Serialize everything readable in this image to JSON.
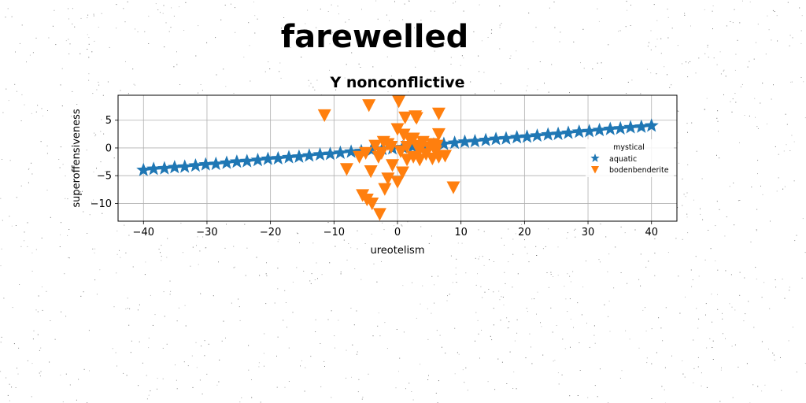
{
  "figure": {
    "suptitle": "farewelled"
  },
  "chart_data": {
    "type": "scatter",
    "title": "Y nonconflictive",
    "xlabel": "ureotelism",
    "ylabel": "superoffensiveness",
    "xlim": [
      -44,
      44
    ],
    "ylim": [
      -13.2,
      9.5
    ],
    "xticks": [
      -40,
      -30,
      -20,
      -10,
      0,
      10,
      20,
      30,
      40
    ],
    "xtick_labels": [
      "−40",
      "−30",
      "−20",
      "−10",
      "0",
      "10",
      "20",
      "30",
      "40"
    ],
    "yticks": [
      -10,
      -5,
      0,
      5
    ],
    "ytick_labels": [
      "−10",
      "−5",
      "0",
      "5"
    ],
    "grid": true,
    "legend": {
      "title": "mystical",
      "placement": "right"
    },
    "series": [
      {
        "name": "aquatic",
        "marker": "star",
        "color": "#1f77b4",
        "line": true,
        "x": [
          -40,
          -38.4,
          -36.7,
          -35.1,
          -33.5,
          -31.8,
          -30.2,
          -28.6,
          -26.9,
          -25.3,
          -23.7,
          -22,
          -20.4,
          -18.8,
          -17.1,
          -15.5,
          -13.9,
          -12.2,
          -10.6,
          -9,
          -7.3,
          -5.7,
          -4.1,
          -2.4,
          -0.8,
          0.8,
          2.4,
          4.1,
          5.7,
          7.3,
          9,
          10.6,
          12.2,
          13.9,
          15.5,
          17.1,
          18.8,
          20.4,
          22,
          23.7,
          25.3,
          26.9,
          28.6,
          30.2,
          31.8,
          33.5,
          35.1,
          36.7,
          38.4,
          40
        ],
        "y": [
          -4,
          -3.8,
          -3.7,
          -3.5,
          -3.4,
          -3.2,
          -3,
          -2.9,
          -2.7,
          -2.5,
          -2.4,
          -2.2,
          -2,
          -1.9,
          -1.7,
          -1.6,
          -1.4,
          -1.2,
          -1.1,
          -0.9,
          -0.7,
          -0.6,
          -0.4,
          -0.2,
          -0.1,
          0.1,
          0.2,
          0.4,
          0.6,
          0.7,
          0.9,
          1.1,
          1.2,
          1.4,
          1.6,
          1.7,
          1.9,
          2,
          2.2,
          2.4,
          2.5,
          2.7,
          2.9,
          3,
          3.2,
          3.4,
          3.5,
          3.7,
          3.8,
          4
        ]
      },
      {
        "name": "bodenbenderite",
        "marker": "triangle-down",
        "color": "#ff7f0e",
        "line": false,
        "x": [
          -11.5,
          -4.5,
          0.2,
          -8,
          -4.2,
          -5.5,
          -4.8,
          -4,
          -2.8,
          -2,
          -1.5,
          -0.8,
          0,
          0.8,
          1.5,
          2.5,
          3.5,
          4.5,
          5.5,
          6.5,
          7.5,
          -6,
          -5,
          -3.5,
          -2.2,
          -1,
          0,
          1,
          2,
          3,
          4,
          5,
          6,
          6.5,
          -2.5,
          -3,
          0.5,
          1.5,
          2.5,
          3.5,
          5.5,
          6.5,
          1.2,
          2.8,
          3,
          -1.5,
          8.8,
          6.2
        ],
        "y": [
          6,
          7.8,
          8.5,
          -3.7,
          -4.1,
          -8.4,
          -9.2,
          -9.9,
          -11.8,
          -7.3,
          -5.4,
          -3,
          -6,
          -4.3,
          -2,
          -1.5,
          -2,
          -1,
          -1.8,
          -1.5,
          -1.3,
          -1.5,
          -0.8,
          0.5,
          1.2,
          0.3,
          3.5,
          2.5,
          1.5,
          0.5,
          1.2,
          0.2,
          -0.5,
          2.6,
          -0.8,
          -1.5,
          -0.5,
          0.3,
          1.8,
          -0.2,
          0.8,
          6.3,
          5.6,
          5.8,
          5.5,
          0.8,
          -7,
          0.5
        ]
      }
    ]
  }
}
